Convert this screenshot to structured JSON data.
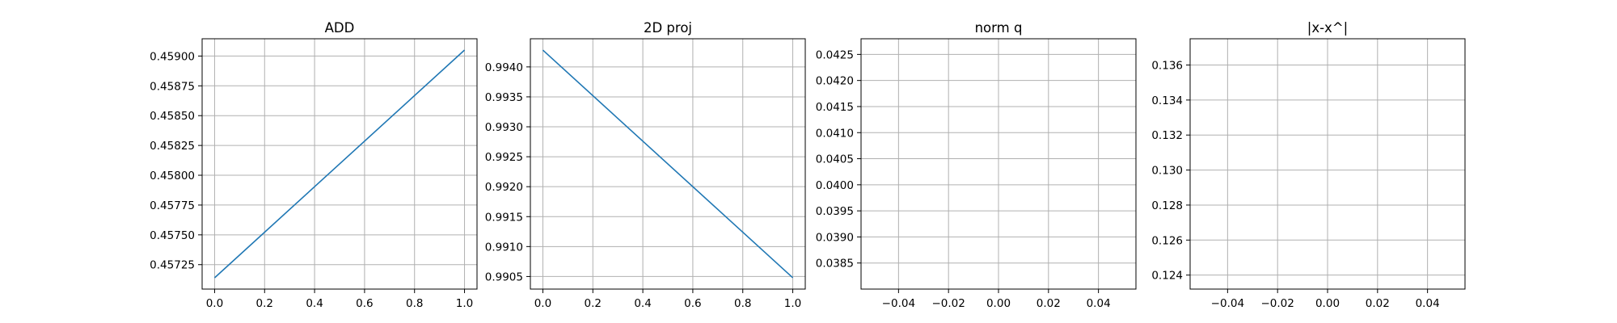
{
  "chart_data": [
    {
      "type": "line",
      "title": "ADD",
      "xlabel": "",
      "ylabel": "",
      "x": [
        0.0,
        1.0
      ],
      "series": [
        {
          "values": [
            0.45714,
            0.45905
          ],
          "color": "#1f77b4"
        }
      ],
      "xlim": [
        -0.05,
        1.05
      ],
      "ylim": [
        0.457045,
        0.459145
      ],
      "xticks": [
        "0.0",
        "0.2",
        "0.4",
        "0.6",
        "0.8",
        "1.0"
      ],
      "xtick_values": [
        0.0,
        0.2,
        0.4,
        0.6,
        0.8,
        1.0
      ],
      "yticks": [
        "0.45725",
        "0.45750",
        "0.45775",
        "0.45800",
        "0.45825",
        "0.45850",
        "0.45875",
        "0.45900"
      ],
      "ytick_values": [
        0.45725,
        0.4575,
        0.45775,
        0.458,
        0.45825,
        0.4585,
        0.45875,
        0.459
      ],
      "grid": true
    },
    {
      "type": "line",
      "title": "2D proj",
      "xlabel": "",
      "ylabel": "",
      "x": [
        0.0,
        1.0
      ],
      "series": [
        {
          "values": [
            0.99428,
            0.99048
          ],
          "color": "#1f77b4"
        }
      ],
      "xlim": [
        -0.05,
        1.05
      ],
      "ylim": [
        0.99029,
        0.99447
      ],
      "xticks": [
        "0.0",
        "0.2",
        "0.4",
        "0.6",
        "0.8",
        "1.0"
      ],
      "xtick_values": [
        0.0,
        0.2,
        0.4,
        0.6,
        0.8,
        1.0
      ],
      "yticks": [
        "0.9905",
        "0.9910",
        "0.9915",
        "0.9920",
        "0.9925",
        "0.9930",
        "0.9935",
        "0.9940"
      ],
      "ytick_values": [
        0.9905,
        0.991,
        0.9915,
        0.992,
        0.9925,
        0.993,
        0.9935,
        0.994
      ],
      "grid": true
    },
    {
      "type": "line",
      "title": "norm q",
      "xlabel": "",
      "ylabel": "",
      "x": [],
      "series": [],
      "xlim": [
        -0.055,
        0.055
      ],
      "ylim": [
        0.038,
        0.0428
      ],
      "xticks": [
        "−0.04",
        "−0.02",
        "0.00",
        "0.02",
        "0.04"
      ],
      "xtick_values": [
        -0.04,
        -0.02,
        0.0,
        0.02,
        0.04
      ],
      "yticks": [
        "0.0385",
        "0.0390",
        "0.0395",
        "0.0400",
        "0.0405",
        "0.0410",
        "0.0415",
        "0.0420",
        "0.0425"
      ],
      "ytick_values": [
        0.0385,
        0.039,
        0.0395,
        0.04,
        0.0405,
        0.041,
        0.0415,
        0.042,
        0.0425
      ],
      "grid": true
    },
    {
      "type": "line",
      "title": "|x-x^|",
      "xlabel": "",
      "ylabel": "",
      "x": [],
      "series": [],
      "xlim": [
        -0.055,
        0.055
      ],
      "ylim": [
        0.1232,
        0.1375
      ],
      "xticks": [
        "−0.04",
        "−0.02",
        "0.00",
        "0.02",
        "0.04"
      ],
      "xtick_values": [
        -0.04,
        -0.02,
        0.0,
        0.02,
        0.04
      ],
      "yticks": [
        "0.124",
        "0.126",
        "0.128",
        "0.130",
        "0.132",
        "0.134",
        "0.136"
      ],
      "ytick_values": [
        0.124,
        0.126,
        0.128,
        0.13,
        0.132,
        0.134,
        0.136
      ],
      "grid": true
    }
  ]
}
